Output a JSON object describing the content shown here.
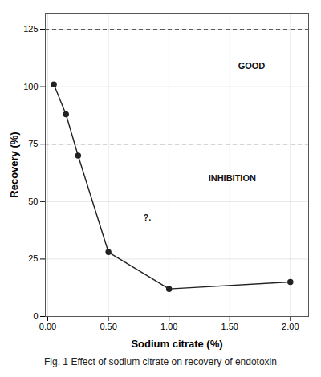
{
  "chart_data": {
    "type": "line",
    "x": [
      0.05,
      0.15,
      0.25,
      0.5,
      1.0,
      2.0
    ],
    "y": [
      101,
      88,
      70,
      28,
      12,
      15
    ],
    "color": "#222222",
    "marker": "circle",
    "xlabel": "Sodium citrate (%)",
    "ylabel": "Recovery (%)",
    "caption": "Fig. 1  Effect of sodium citrate on recovery of endotoxin",
    "xlim": [
      -0.02,
      2.15
    ],
    "ylim": [
      0,
      132
    ],
    "xticks": [
      {
        "value": 0,
        "label": "0.00"
      },
      {
        "value": 0.5,
        "label": "0.50"
      },
      {
        "value": 1,
        "label": "1.00"
      },
      {
        "value": 1.5,
        "label": "1.50"
      },
      {
        "value": 2,
        "label": "2.00"
      }
    ],
    "yticks": [
      0,
      25,
      50,
      75,
      100,
      125
    ],
    "grid": true,
    "hlines": [
      75,
      125
    ],
    "annotations": [
      {
        "text": "GOOD",
        "x": 1.68,
        "y": 109
      },
      {
        "text": "INHIBITION",
        "x": 1.52,
        "y": 60
      },
      {
        "text": "?.",
        "x": 0.82,
        "y": 43
      }
    ]
  }
}
